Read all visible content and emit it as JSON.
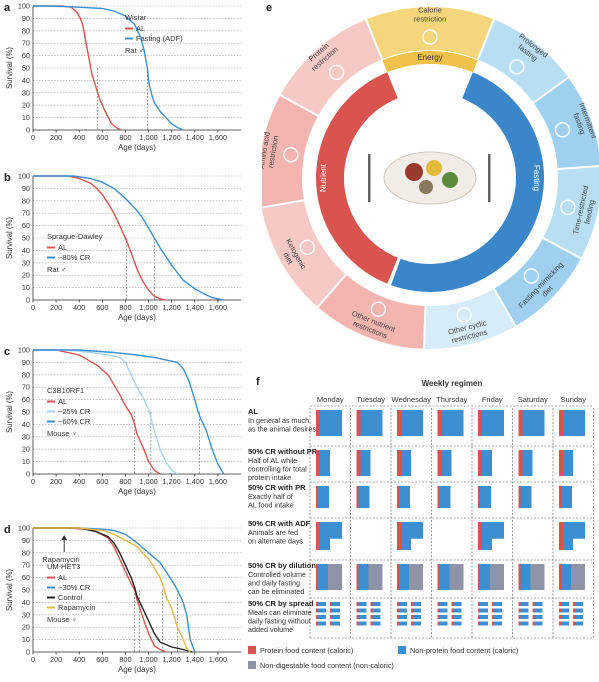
{
  "panel_labels": {
    "a": "a",
    "b": "b",
    "c": "c",
    "d": "d",
    "e": "e",
    "f": "f"
  },
  "chart_data": [
    {
      "id": "a",
      "type": "line",
      "ylabel": "Survival (%)",
      "xlabel": "Age (days)",
      "xlim": [
        0,
        1800
      ],
      "ylim": [
        0,
        100
      ],
      "xticks": [
        0,
        200,
        400,
        600,
        800,
        1000,
        1200,
        1400,
        1600
      ],
      "xtick_labels": [
        "0",
        "200",
        "400",
        "600",
        "800",
        "1,000",
        "1,200",
        "1,400",
        "1,600"
      ],
      "yticks": [
        0,
        10,
        20,
        30,
        40,
        50,
        60,
        70,
        80,
        90,
        100
      ],
      "legend_title": "Wistar",
      "legend_footer": "Rat ♂",
      "medians": [
        560,
        990
      ],
      "series": [
        {
          "name": "AL",
          "color": "#d9534f",
          "x": [
            0,
            250,
            330,
            380,
            410,
            430,
            450,
            470,
            490,
            510,
            520,
            540,
            560,
            580,
            600,
            640,
            680,
            720,
            760
          ],
          "y": [
            100,
            100,
            99,
            95,
            90,
            85,
            75,
            65,
            55,
            45,
            42,
            36,
            30,
            24,
            20,
            12,
            5,
            2,
            0
          ]
        },
        {
          "name": "Fasting (ADF)",
          "color": "#3d8fd1",
          "x": [
            0,
            150,
            400,
            600,
            700,
            800,
            880,
            930,
            960,
            980,
            990,
            1000,
            1010,
            1030,
            1050,
            1100,
            1150,
            1200,
            1250,
            1300
          ],
          "y": [
            100,
            100,
            99,
            98,
            96,
            92,
            85,
            75,
            65,
            55,
            50,
            40,
            35,
            28,
            22,
            15,
            10,
            5,
            2,
            0
          ]
        }
      ]
    },
    {
      "id": "b",
      "type": "line",
      "ylabel": "Survival (%)",
      "xlabel": "Age (days)",
      "xlim": [
        0,
        1800
      ],
      "ylim": [
        0,
        100
      ],
      "xticks": [
        0,
        200,
        400,
        600,
        800,
        1000,
        1200,
        1400,
        1600
      ],
      "xtick_labels": [
        "0",
        "200",
        "400",
        "600",
        "800",
        "1,000",
        "1,200",
        "1,400",
        "1,600"
      ],
      "yticks": [
        0,
        10,
        20,
        30,
        40,
        50,
        60,
        70,
        80,
        90,
        100
      ],
      "legend_title": "Sprague-Dawley",
      "legend_footer": "Rat ♂",
      "medians": [
        810,
        1050
      ],
      "series": [
        {
          "name": "AL",
          "color": "#d9534f",
          "x": [
            0,
            300,
            400,
            500,
            550,
            600,
            650,
            700,
            750,
            800,
            850,
            900,
            950,
            1000,
            1050,
            1100,
            1150
          ],
          "y": [
            100,
            100,
            98,
            94,
            90,
            85,
            78,
            70,
            60,
            50,
            38,
            25,
            15,
            8,
            3,
            1,
            0
          ]
        },
        {
          "name": "~80% CR",
          "color": "#3d8fd1",
          "x": [
            0,
            350,
            500,
            600,
            700,
            800,
            900,
            950,
            1000,
            1050,
            1100,
            1150,
            1200,
            1250,
            1300,
            1400,
            1500,
            1550,
            1600,
            1650
          ],
          "y": [
            100,
            100,
            98,
            95,
            90,
            82,
            72,
            66,
            58,
            50,
            42,
            35,
            28,
            22,
            16,
            9,
            4,
            2,
            1,
            0
          ]
        }
      ]
    },
    {
      "id": "c",
      "type": "line",
      "ylabel": "Survival (%)",
      "xlabel": "Age (days)",
      "xlim": [
        0,
        1800
      ],
      "ylim": [
        0,
        100
      ],
      "xticks": [
        0,
        200,
        400,
        600,
        800,
        1000,
        1200,
        1400,
        1600
      ],
      "xtick_labels": [
        "0",
        "200",
        "400",
        "600",
        "800",
        "1,000",
        "1,200",
        "1,400",
        "1,600"
      ],
      "yticks": [
        0,
        10,
        20,
        30,
        40,
        50,
        60,
        70,
        80,
        90,
        100
      ],
      "legend_title": "C3B10RF1",
      "legend_footer": "Mouse ♀",
      "medians": [
        880,
        1020,
        1440
      ],
      "series": [
        {
          "name": "AL",
          "color": "#d9534f",
          "x": [
            0,
            200,
            400,
            550,
            650,
            700,
            750,
            800,
            850,
            880,
            900,
            950,
            1000,
            1050,
            1100
          ],
          "y": [
            100,
            100,
            96,
            88,
            80,
            72,
            64,
            55,
            48,
            40,
            32,
            22,
            10,
            3,
            0
          ]
        },
        {
          "name": "~25% CR",
          "color": "#a9d4ee",
          "x": [
            0,
            300,
            500,
            650,
            750,
            800,
            850,
            900,
            950,
            1000,
            1020,
            1050,
            1100,
            1150,
            1200,
            1250
          ],
          "y": [
            100,
            100,
            98,
            96,
            94,
            90,
            80,
            70,
            62,
            52,
            45,
            35,
            20,
            10,
            3,
            0
          ]
        },
        {
          "name": "~60% CR",
          "color": "#3d8fd1",
          "x": [
            0,
            400,
            700,
            900,
            1050,
            1150,
            1250,
            1300,
            1350,
            1400,
            1430,
            1450,
            1500,
            1550,
            1600,
            1650
          ],
          "y": [
            100,
            100,
            98,
            96,
            94,
            92,
            90,
            85,
            75,
            60,
            50,
            45,
            35,
            20,
            8,
            0
          ]
        }
      ]
    },
    {
      "id": "d",
      "type": "line",
      "ylabel": "Survival (%)",
      "xlabel": "Age (days)",
      "xlim": [
        0,
        1800
      ],
      "ylim": [
        0,
        100
      ],
      "xticks": [
        0,
        200,
        400,
        600,
        800,
        1000,
        1200,
        1400,
        1600
      ],
      "xtick_labels": [
        "0",
        "200",
        "400",
        "600",
        "800",
        "1,000",
        "1,200",
        "1,400",
        "1,600"
      ],
      "yticks": [
        0,
        10,
        20,
        30,
        40,
        50,
        60,
        70,
        80,
        90,
        100
      ],
      "legend_title": "UM-HET3",
      "legend_footer": "Mouse ♀",
      "annotation": "Rapamycin",
      "annotation_x": 270,
      "medians": [
        880,
        920,
        1120,
        1250
      ],
      "series": [
        {
          "name": "AL",
          "color": "#d9534f",
          "x": [
            0,
            300,
            450,
            550,
            650,
            700,
            750,
            800,
            850,
            880,
            900,
            950,
            1000,
            1050,
            1100,
            1150
          ],
          "y": [
            100,
            100,
            99,
            97,
            92,
            85,
            75,
            65,
            55,
            50,
            42,
            28,
            15,
            5,
            2,
            0
          ]
        },
        {
          "name": "~30% CR",
          "color": "#3d8fd1",
          "x": [
            0,
            400,
            600,
            700,
            800,
            900,
            1000,
            1100,
            1150,
            1200,
            1250,
            1300,
            1330,
            1360,
            1400
          ],
          "y": [
            100,
            100,
            99,
            98,
            95,
            88,
            80,
            72,
            65,
            58,
            50,
            40,
            30,
            10,
            0
          ]
        },
        {
          "name": "Control",
          "color": "#222222",
          "x": [
            0,
            400,
            550,
            650,
            700,
            750,
            800,
            850,
            880,
            900,
            950,
            1000,
            1050,
            1100,
            1200,
            1300,
            1380
          ],
          "y": [
            100,
            100,
            97,
            93,
            88,
            80,
            70,
            60,
            52,
            45,
            35,
            25,
            15,
            8,
            4,
            2,
            0
          ]
        },
        {
          "name": "Rapamycin",
          "color": "#e8b84a",
          "x": [
            0,
            400,
            600,
            700,
            800,
            900,
            1000,
            1050,
            1100,
            1130,
            1150,
            1200,
            1250,
            1300,
            1330,
            1360
          ],
          "y": [
            100,
            100,
            98,
            95,
            90,
            85,
            75,
            68,
            60,
            52,
            45,
            35,
            20,
            10,
            3,
            0
          ]
        }
      ]
    }
  ],
  "wheel": {
    "center_label": "Energy",
    "top_label": "Calorie\nrestriction",
    "nutrient_label": "Nutrient",
    "fasting_label": "Fasting",
    "outer_segments": [
      "Protein\nrestriction",
      "Amino acid\nrestriction",
      "Ketogenic\ndiet",
      "Other nutrient\nrestrictions",
      "Other cyclic\nrestrictions",
      "Fasting-mimicking\ndiet",
      "Time-restricted\nfeeding",
      "Intermittent\nfasting",
      "Prolonged\nfasting"
    ]
  },
  "regimen": {
    "title": "Weekly regimen",
    "days": [
      "Monday",
      "Tuesday",
      "Wednesday",
      "Thursday",
      "Friday",
      "Saturday",
      "Sunday"
    ],
    "rows": [
      {
        "name": "AL",
        "desc": "In general as much\nas the animal desires"
      },
      {
        "name": "50% CR without PR",
        "desc": "Half of AL while\ncontrolling for total\nprotein intake"
      },
      {
        "name": "50% CR with PR",
        "desc": "Exactly half of\nAL food intake"
      },
      {
        "name": "50% CR with ADF",
        "desc": "Animals are fed\non alternate days"
      },
      {
        "name": "50% CR by dilution",
        "desc": "Controlled volume\nand daily fasting\ncan be eliminated"
      },
      {
        "name": "50% CR by spread",
        "desc": "Meals can eliminate\ndaily fasting without\nadded volume"
      }
    ],
    "legend": [
      {
        "label": "Protein food content (caloric)",
        "color": "#d9534f"
      },
      {
        "label": "Non-protein food content (caloric)",
        "color": "#3d8fd1"
      },
      {
        "label": "Non-digestable food content (non-caloric)",
        "color": "#8e93a8"
      }
    ]
  }
}
